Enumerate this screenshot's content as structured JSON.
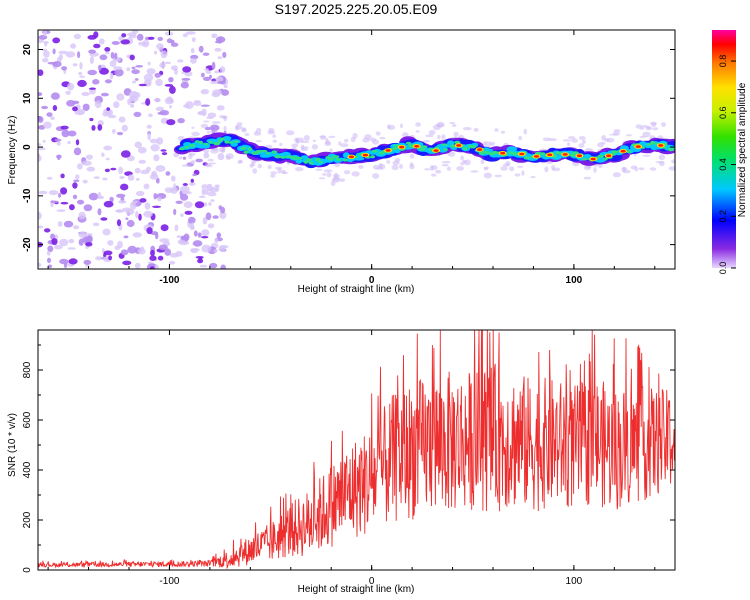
{
  "title": "S197.2025.225.20.05.E09",
  "colors": {
    "snr_line": "#ee2e2e",
    "frame": "#000000",
    "ridge_low": "#7b1fe6",
    "ridge_high": "#ff0000"
  },
  "chart_data": [
    {
      "type": "heatmap",
      "name": "spectrogram",
      "xlabel": "Height of straight line (km)",
      "ylabel": "Frequency (Hz)",
      "xlim": [
        -165,
        150
      ],
      "ylim": [
        -25,
        24
      ],
      "x_ticks": [
        -100,
        0,
        100
      ],
      "x_tick_labels": [
        "-100",
        "0",
        "100"
      ],
      "y_ticks": [
        -20,
        -10,
        0,
        10,
        20
      ],
      "y_tick_labels": [
        "-20",
        "-10",
        "0",
        "10",
        "20"
      ],
      "noise_region_km": [
        -165,
        -80
      ],
      "signal_start_km": -95,
      "ridge": {
        "x": [
          -95,
          -80,
          -70,
          -60,
          -50,
          -40,
          -30,
          -20,
          -10,
          0,
          10,
          20,
          30,
          40,
          50,
          60,
          70,
          80,
          90,
          100,
          110,
          120,
          130,
          140,
          150
        ],
        "frequency_hz": [
          0,
          1,
          1.5,
          -1,
          -1.5,
          -2,
          -3,
          -2.5,
          -2,
          -1.5,
          -0.5,
          0.5,
          -1,
          0.5,
          0,
          -1.5,
          -1,
          -2,
          -1.5,
          -1.5,
          -2.5,
          -1.5,
          0,
          0.5,
          0
        ]
      },
      "colorbar": {
        "label": "Normalized spectral amplitude",
        "range": [
          0.0,
          0.92
        ],
        "ticks": [
          0.0,
          0.2,
          0.4,
          0.6,
          0.8
        ],
        "tick_labels": [
          "0.0",
          "0.2",
          "0.4",
          "0.6",
          "0.8"
        ]
      }
    },
    {
      "type": "line",
      "name": "snr",
      "xlabel": "Height of straight line (km)",
      "ylabel": "SNR (10 * v/v)",
      "xlim": [
        -165,
        150
      ],
      "ylim": [
        0,
        960
      ],
      "x_ticks": [
        -100,
        0,
        100
      ],
      "x_tick_labels": [
        "-100",
        "0",
        "100"
      ],
      "y_ticks": [
        0,
        200,
        400,
        600,
        800
      ],
      "y_tick_labels": [
        "0",
        "200",
        "400",
        "600",
        "800"
      ],
      "envelope": {
        "x": [
          -165,
          -80,
          -70,
          -60,
          -50,
          -40,
          -30,
          -20,
          -10,
          0,
          10,
          20,
          30,
          40,
          50,
          60,
          70,
          80,
          90,
          100,
          110,
          120,
          130,
          140,
          150
        ],
        "mean": [
          20,
          25,
          45,
          80,
          110,
          160,
          190,
          260,
          320,
          360,
          440,
          480,
          500,
          510,
          520,
          530,
          520,
          500,
          510,
          490,
          520,
          480,
          500,
          510,
          520
        ],
        "spread": [
          8,
          12,
          40,
          60,
          80,
          110,
          140,
          170,
          200,
          220,
          260,
          280,
          280,
          290,
          280,
          300,
          280,
          270,
          260,
          250,
          260,
          250,
          240,
          220,
          200
        ]
      },
      "peaks": [
        {
          "x": 63,
          "y": 950
        },
        {
          "x": 30,
          "y": 900
        },
        {
          "x": 88,
          "y": 880
        },
        {
          "x": 147,
          "y": 650
        }
      ]
    }
  ]
}
